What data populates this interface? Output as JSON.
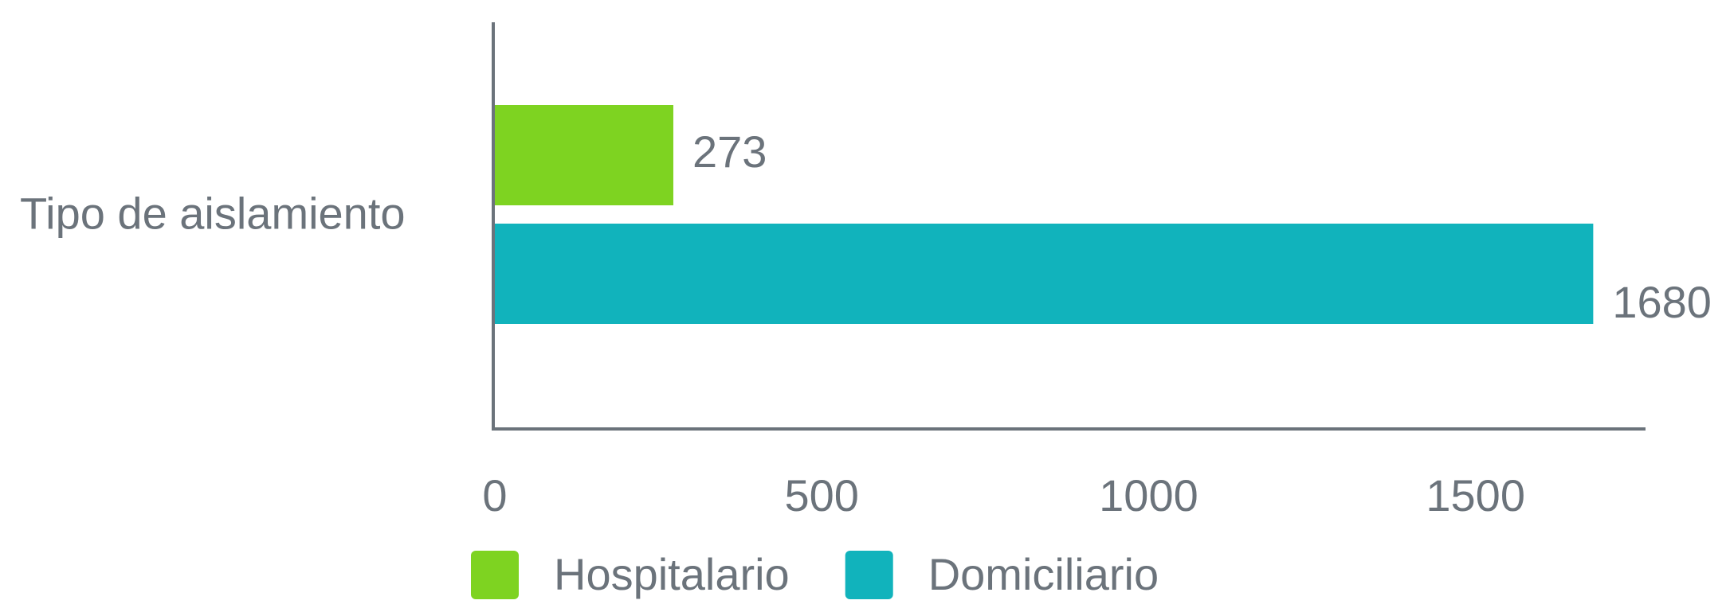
{
  "chart_data": {
    "type": "bar",
    "orientation": "horizontal",
    "categories": [
      "Tipo de aislamiento"
    ],
    "series": [
      {
        "name": "Hospitalario",
        "color": "#7ed321",
        "values": [
          273
        ]
      },
      {
        "name": "Domiciliario",
        "color": "#11b3bc",
        "values": [
          1680
        ]
      }
    ],
    "xlim": [
      0,
      1760
    ],
    "xticks": [
      0,
      500,
      1000,
      1500
    ],
    "grid": false,
    "legend": "bottom",
    "value_labels_shown": true
  }
}
